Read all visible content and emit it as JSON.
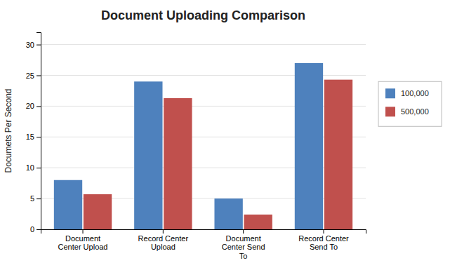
{
  "chart_data": {
    "type": "bar",
    "title": "Document Uploading Comparison",
    "ylabel": "Documets Per Second",
    "categories": [
      "Document\nCenter Upload",
      "Record Center\nUpload",
      "Document\nCenter Send\nTo",
      "Record Center\nSend To"
    ],
    "series": [
      {
        "name": "100,000",
        "color": "#4E81BD",
        "values": [
          8,
          24,
          5,
          27
        ]
      },
      {
        "name": "500,000",
        "color": "#C0504D",
        "values": [
          5.7,
          21.3,
          2.4,
          24.3
        ]
      }
    ],
    "ylim": [
      0,
      32
    ],
    "yticks": [
      0,
      5,
      10,
      15,
      20,
      25,
      30
    ],
    "grid": true,
    "legend": "right"
  }
}
